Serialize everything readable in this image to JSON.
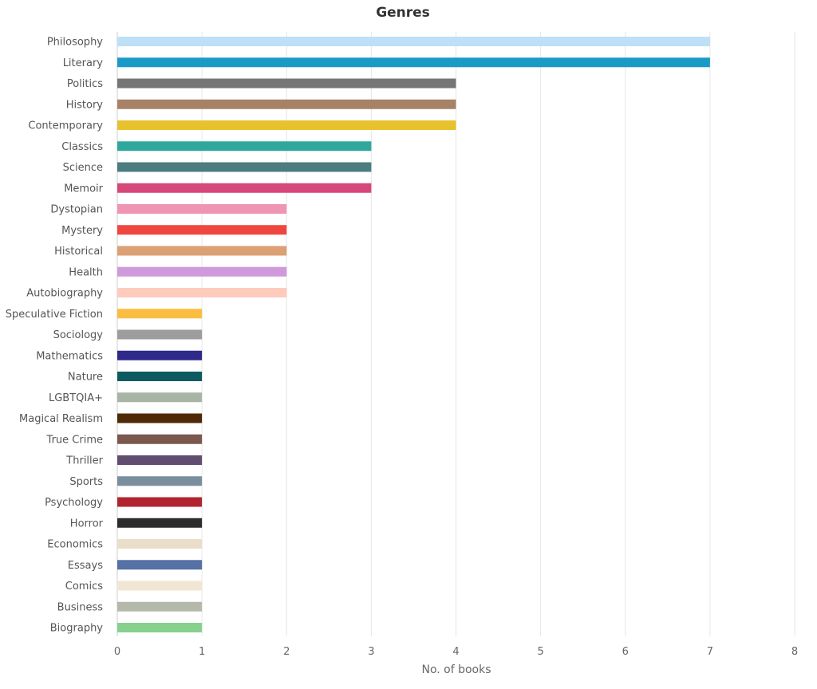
{
  "chart_data": {
    "type": "bar",
    "orientation": "horizontal",
    "title": "Genres",
    "xlabel": "No. of books",
    "ylabel": "",
    "xlim": [
      0,
      8
    ],
    "xticks": [
      0,
      1,
      2,
      3,
      4,
      5,
      6,
      7,
      8
    ],
    "grid": true,
    "legend": false,
    "categories": [
      "Philosophy",
      "Literary",
      "Politics",
      "History",
      "Contemporary",
      "Classics",
      "Science",
      "Memoir",
      "Dystopian",
      "Mystery",
      "Historical",
      "Health",
      "Autobiography",
      "Speculative Fiction",
      "Sociology",
      "Mathematics",
      "Nature",
      "LGBTQIA+",
      "Magical Realism",
      "True Crime",
      "Thriller",
      "Sports",
      "Psychology",
      "Horror",
      "Economics",
      "Essays",
      "Comics",
      "Business",
      "Biography"
    ],
    "values": [
      7,
      7,
      4,
      4,
      4,
      3,
      3,
      3,
      2,
      2,
      2,
      2,
      2,
      1,
      1,
      1,
      1,
      1,
      1,
      1,
      1,
      1,
      1,
      1,
      1,
      1,
      1,
      1,
      1
    ],
    "colors": [
      "#bde0f7",
      "#1a9ac6",
      "#767676",
      "#a88266",
      "#e8c22e",
      "#2fa89b",
      "#4a7c80",
      "#d6477a",
      "#ef94b5",
      "#ef4640",
      "#dba074",
      "#cf99db",
      "#ffcbbd",
      "#fabd41",
      "#9d9d9d",
      "#2d2a8a",
      "#0d5b60",
      "#a8b5a6",
      "#4f2807",
      "#7a584b",
      "#604d70",
      "#7a8e9d",
      "#b1262e",
      "#2c2c2c",
      "#eaddca",
      "#5571a5",
      "#f1e6d3",
      "#b5b9aa",
      "#86d18e"
    ]
  }
}
